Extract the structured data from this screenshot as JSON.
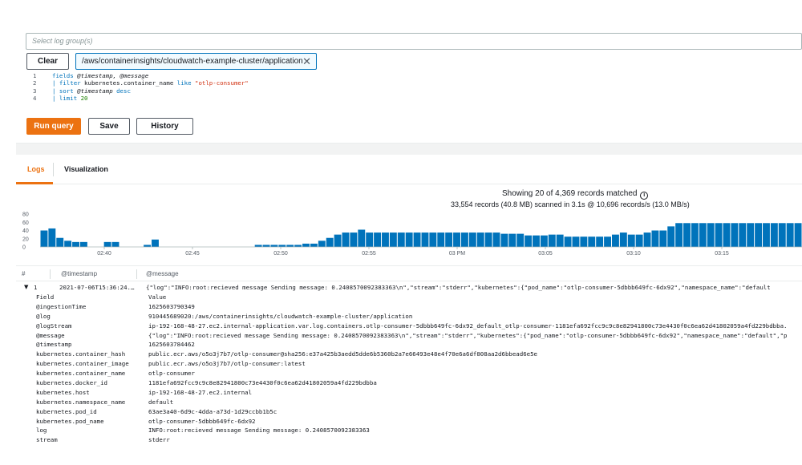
{
  "query": {
    "loggroup_placeholder": "Select log group(s)",
    "clear_label": "Clear",
    "selected_group": "/aws/containerinsights/cloudwatch-example-cluster/application",
    "lines": [
      {
        "num": "1",
        "parts": [
          {
            "t": "fields ",
            "c": "kw"
          },
          {
            "t": "@timestamp, @message",
            "c": "it"
          }
        ]
      },
      {
        "num": "2",
        "parts": [
          {
            "t": "| filter ",
            "c": "kw"
          },
          {
            "t": "kubernetes.container_name ",
            "c": "pl"
          },
          {
            "t": "like ",
            "c": "kw"
          },
          {
            "t": "\"otlp-consumer\"",
            "c": "str"
          }
        ]
      },
      {
        "num": "3",
        "parts": [
          {
            "t": "| sort ",
            "c": "kw"
          },
          {
            "t": "@timestamp ",
            "c": "it"
          },
          {
            "t": "desc",
            "c": "kw"
          }
        ]
      },
      {
        "num": "4",
        "parts": [
          {
            "t": "| limit ",
            "c": "kw"
          },
          {
            "t": "20",
            "c": "num"
          }
        ]
      }
    ],
    "run_label": "Run query",
    "save_label": "Save",
    "history_label": "History"
  },
  "tabs": {
    "logs": "Logs",
    "visualization": "Visualization"
  },
  "summary": {
    "showing": "Showing 20 of 4,369 records matched",
    "scanned": "33,554 records (40.8 MB) scanned in 3.1s @ 10,696 records/s (13.0 MB/s)"
  },
  "histogram": {
    "y_ticks": [
      "80",
      "60",
      "40",
      "20",
      "0"
    ],
    "y_max": 80,
    "x_ticks": [
      "02:40",
      "02:45",
      "02:50",
      "02:55",
      "03 PM",
      "03:05",
      "03:10",
      "03:15"
    ],
    "values": [
      40,
      45,
      22,
      15,
      12,
      12,
      0,
      0,
      12,
      12,
      0,
      0,
      0,
      5,
      18,
      0,
      0,
      0,
      0,
      0,
      0,
      0,
      0,
      0,
      0,
      0,
      0,
      5,
      5,
      5,
      5,
      5,
      5,
      8,
      8,
      15,
      22,
      30,
      35,
      35,
      42,
      35,
      35,
      35,
      35,
      35,
      35,
      35,
      35,
      35,
      35,
      35,
      35,
      35,
      35,
      35,
      35,
      35,
      32,
      32,
      32,
      28,
      28,
      28,
      30,
      30,
      25,
      25,
      25,
      25,
      25,
      25,
      30,
      35,
      30,
      30,
      35,
      40,
      40,
      50,
      58,
      58,
      58,
      58,
      58,
      58,
      58,
      58,
      58,
      58,
      58,
      58,
      58,
      58,
      58,
      58
    ]
  },
  "table": {
    "col_hash": "#",
    "col_timestamp": "@timestamp",
    "col_message": "@message",
    "row_index": "1",
    "row_timestamp": "2021-07-06T15:36:24.…",
    "row_message": "{\"log\":\"INFO:root:recieved message Sending message: 0.2408570092383363\\n\",\"stream\":\"stderr\",\"kubernetes\":{\"pod_name\":\"otlp-consumer-5dbbb649fc-6dx92\",\"namespace_name\":\"default"
  },
  "fields": [
    {
      "name": "Field",
      "value": "Value"
    },
    {
      "name": "@ingestionTime",
      "value": "1625603790349"
    },
    {
      "name": "@log",
      "value": "910445689020:/aws/containerinsights/cloudwatch-example-cluster/application"
    },
    {
      "name": "@logStream",
      "value": "ip-192-168-48-27.ec2.internal-application.var.log.containers.otlp-consumer-5dbbb649fc-6dx92_default_otlp-consumer-1181efa692fcc9c9c8e82941800c73e4430f0c6ea62d41802059a4fd229bdbba."
    },
    {
      "name": "@message",
      "value": "{\"log\":\"INFO:root:recieved message Sending message: 0.2408570092383363\\n\",\"stream\":\"stderr\",\"kubernetes\":{\"pod_name\":\"otlp-consumer-5dbbb649fc-6dx92\",\"namespace_name\":\"default\",\"p"
    },
    {
      "name": "@timestamp",
      "value": "1625603784462"
    },
    {
      "name": "kubernetes.container_hash",
      "value": "public.ecr.aws/o5o3j7b7/otlp-consumer@sha256:e37a425b3aedd5dde6b5360b2a7e66493e48e4f70e6a6df808aa2d6bbead6e5e"
    },
    {
      "name": "kubernetes.container_image",
      "value": "public.ecr.aws/o5o3j7b7/otlp-consumer:latest"
    },
    {
      "name": "kubernetes.container_name",
      "value": "otlp-consumer"
    },
    {
      "name": "kubernetes.docker_id",
      "value": "1181efa692fcc9c9c8e82941800c73e4430f0c6ea62d41802059a4fd229bdbba"
    },
    {
      "name": "kubernetes.host",
      "value": "ip-192-168-48-27.ec2.internal"
    },
    {
      "name": "kubernetes.namespace_name",
      "value": "default"
    },
    {
      "name": "kubernetes.pod_id",
      "value": "63ae3a40-6d9c-4dda-a73d-1d29ccbb1b5c"
    },
    {
      "name": "kubernetes.pod_name",
      "value": "otlp-consumer-5dbbb649fc-6dx92"
    },
    {
      "name": "log",
      "value": "INFO:root:recieved message Sending message: 0.2408570092383363"
    },
    {
      "name": "stream",
      "value": "stderr"
    }
  ]
}
